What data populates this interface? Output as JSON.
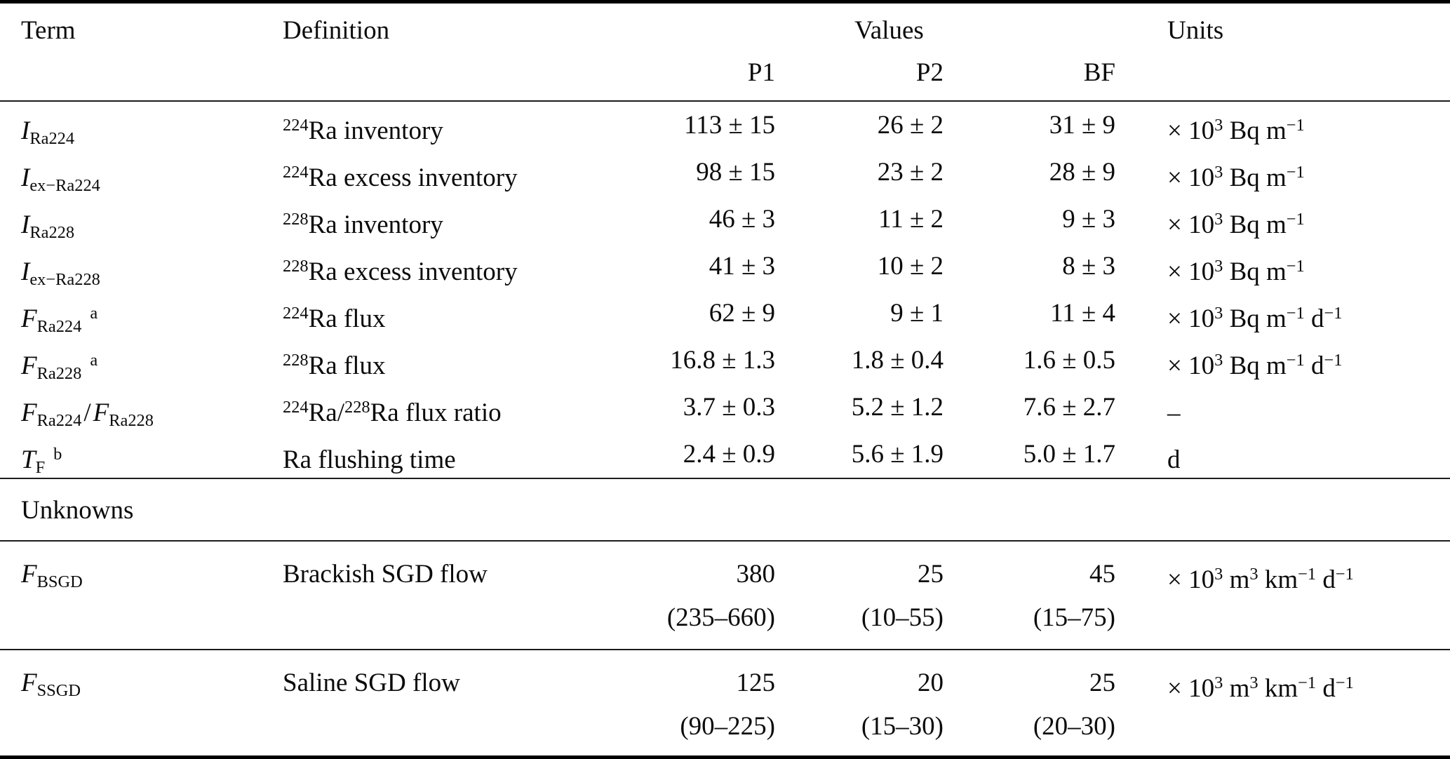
{
  "table": {
    "headers": {
      "term": "Term",
      "definition": "Definition",
      "values": "Values",
      "units": "Units",
      "sub_columns": [
        "P1",
        "P2",
        "BF"
      ]
    },
    "section_label": "Unknowns",
    "rows": [
      {
        "term": {
          "b1": "I",
          "s1": "Ra224",
          "sep": "",
          "b2": "",
          "s2": "",
          "sup": ""
        },
        "def": {
          "p1": "224",
          "t1": "Ra inventory",
          "p2": "",
          "t2": ""
        },
        "values": {
          "p1": "113 ± 15",
          "p2": "26 ± 2",
          "bf": "31 ± 9"
        },
        "units": [
          {
            "t": "× 10",
            "s": "3"
          },
          {
            "t": " Bq m",
            "s": "−1"
          }
        ]
      },
      {
        "term": {
          "b1": "I",
          "s1": "ex−Ra224",
          "sep": "",
          "b2": "",
          "s2": "",
          "sup": ""
        },
        "def": {
          "p1": "224",
          "t1": "Ra excess inventory",
          "p2": "",
          "t2": ""
        },
        "values": {
          "p1": "98 ± 15",
          "p2": "23 ± 2",
          "bf": "28 ± 9"
        },
        "units": [
          {
            "t": "× 10",
            "s": "3"
          },
          {
            "t": " Bq m",
            "s": "−1"
          }
        ]
      },
      {
        "term": {
          "b1": "I",
          "s1": "Ra228",
          "sep": "",
          "b2": "",
          "s2": "",
          "sup": ""
        },
        "def": {
          "p1": "228",
          "t1": "Ra inventory",
          "p2": "",
          "t2": ""
        },
        "values": {
          "p1": "46 ± 3",
          "p2": "11 ± 2",
          "bf": "9 ± 3"
        },
        "units": [
          {
            "t": "× 10",
            "s": "3"
          },
          {
            "t": " Bq m",
            "s": "−1"
          }
        ]
      },
      {
        "term": {
          "b1": "I",
          "s1": "ex−Ra228",
          "sep": "",
          "b2": "",
          "s2": "",
          "sup": ""
        },
        "def": {
          "p1": "228",
          "t1": "Ra excess inventory",
          "p2": "",
          "t2": ""
        },
        "values": {
          "p1": "41 ± 3",
          "p2": "10 ± 2",
          "bf": "8 ± 3"
        },
        "units": [
          {
            "t": "× 10",
            "s": "3"
          },
          {
            "t": " Bq m",
            "s": "−1"
          }
        ]
      },
      {
        "term": {
          "b1": "F",
          "s1": "Ra224",
          "sep": "",
          "b2": "",
          "s2": "",
          "sup": "a"
        },
        "def": {
          "p1": "224",
          "t1": "Ra flux",
          "p2": "",
          "t2": ""
        },
        "values": {
          "p1": "62 ± 9",
          "p2": "9 ± 1",
          "bf": "11 ± 4"
        },
        "units": [
          {
            "t": "× 10",
            "s": "3"
          },
          {
            "t": " Bq m",
            "s": "−1"
          },
          {
            "t": " d",
            "s": "−1"
          }
        ]
      },
      {
        "term": {
          "b1": "F",
          "s1": "Ra228",
          "sep": "",
          "b2": "",
          "s2": "",
          "sup": "a"
        },
        "def": {
          "p1": "228",
          "t1": "Ra flux",
          "p2": "",
          "t2": ""
        },
        "values": {
          "p1": "16.8 ± 1.3",
          "p2": "1.8 ± 0.4",
          "bf": "1.6 ± 0.5"
        },
        "units": [
          {
            "t": "× 10",
            "s": "3"
          },
          {
            "t": " Bq m",
            "s": "−1"
          },
          {
            "t": " d",
            "s": "−1"
          }
        ]
      },
      {
        "term": {
          "b1": "F",
          "s1": "Ra224",
          "sep": "/",
          "b2": "F",
          "s2": "Ra228",
          "sup": ""
        },
        "def": {
          "p1": "224",
          "t1": "Ra/",
          "p2": "228",
          "t2": "Ra flux ratio"
        },
        "values": {
          "p1": "3.7 ± 0.3",
          "p2": "5.2 ± 1.2",
          "bf": "7.6 ± 2.7"
        },
        "units": [
          {
            "t": "–",
            "s": ""
          }
        ]
      },
      {
        "term": {
          "b1": "T",
          "s1": "F",
          "sep": "",
          "b2": "",
          "s2": "",
          "sup": "b"
        },
        "def": {
          "p1": "",
          "t1": "Ra flushing time",
          "p2": "",
          "t2": ""
        },
        "values": {
          "p1": "2.4 ± 0.9",
          "p2": "5.6 ± 1.9",
          "bf": "5.0 ± 1.7"
        },
        "units": [
          {
            "t": "d",
            "s": ""
          }
        ]
      }
    ],
    "unknown_rows": [
      {
        "term": {
          "b1": "F",
          "s1": "BSGD"
        },
        "def": {
          "t1": "Brackish SGD flow"
        },
        "values": {
          "p1": {
            "v": "380",
            "r": "(235–660)"
          },
          "p2": {
            "v": "25",
            "r": "(10–55)"
          },
          "bf": {
            "v": "45",
            "r": "(15–75)"
          }
        },
        "units": [
          {
            "t": "× 10",
            "s": "3"
          },
          {
            "t": " m",
            "s": "3"
          },
          {
            "t": " km",
            "s": "−1"
          },
          {
            "t": " d",
            "s": "−1"
          }
        ]
      },
      {
        "term": {
          "b1": "F",
          "s1": "SSGD"
        },
        "def": {
          "t1": "Saline SGD flow"
        },
        "values": {
          "p1": {
            "v": "125",
            "r": "(90–225)"
          },
          "p2": {
            "v": "20",
            "r": "(15–30)"
          },
          "bf": {
            "v": "25",
            "r": "(20–30)"
          }
        },
        "units": [
          {
            "t": "× 10",
            "s": "3"
          },
          {
            "t": " m",
            "s": "3"
          },
          {
            "t": " km",
            "s": "−1"
          },
          {
            "t": " d",
            "s": "−1"
          }
        ]
      }
    ]
  }
}
